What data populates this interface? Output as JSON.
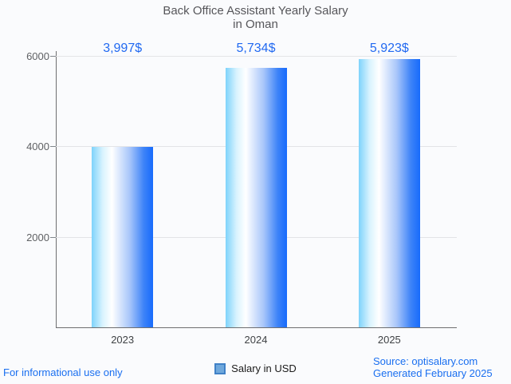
{
  "chart_data": {
    "type": "bar",
    "title": "Back Office Assistant Yearly Salary",
    "subtitle": "in Oman",
    "categories": [
      "2023",
      "2024",
      "2025"
    ],
    "series": [
      {
        "name": "Salary in USD",
        "values": [
          3997,
          5734,
          5923
        ]
      }
    ],
    "value_labels": [
      "3,997$",
      "5,734$",
      "5,923$"
    ],
    "xlabel": "",
    "ylabel": "",
    "ylim": [
      0,
      6000
    ],
    "yticks": [
      2000,
      4000,
      6000
    ],
    "grid": true,
    "legend_position": "bottom",
    "bar_gradient": [
      "#7ed3fb",
      "#ffffff",
      "#176bfc"
    ]
  },
  "legend": {
    "label": "Salary in USD",
    "swatch_fill": "#6fa8dc",
    "swatch_border": "#4081c7"
  },
  "footer": {
    "left": "For informational use only",
    "source_line": "Source: optisalary.com",
    "generated_line": "Generated February 2025"
  },
  "colors": {
    "background": "#fafbfd",
    "title_gray": "#56565a",
    "axis_label_gray": "#5f6164",
    "xlabel_gray": "#3f4245",
    "value_blue": "#2169f1",
    "footer_blue": "#1a6ff0",
    "grid_line": "#e3e4e7",
    "axis_line": "#6e6e70"
  }
}
